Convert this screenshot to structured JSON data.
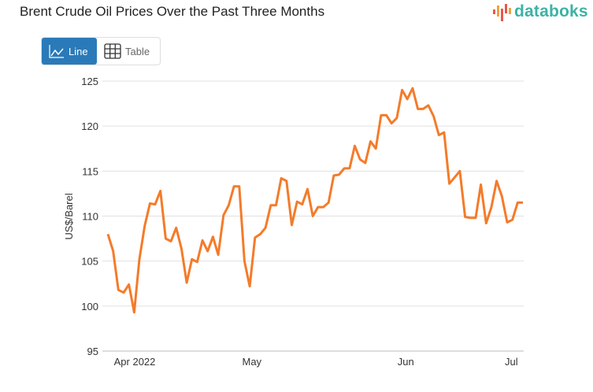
{
  "title": "Brent Crude Oil Prices Over the Past Three Months",
  "logo": {
    "text": "databoks",
    "colors": [
      "#e8574a",
      "#f0a23c",
      "#3bb3a5"
    ]
  },
  "view_toggle": {
    "line_label": "Line",
    "table_label": "Table",
    "active": "Line",
    "active_color": "#2a7ab9"
  },
  "chart_data": {
    "type": "line",
    "title": "Brent Crude Oil Prices Over the Past Three Months",
    "ylabel": "US$/Barel",
    "xlabel": "",
    "ylim": [
      95,
      125
    ],
    "yticks": [
      95,
      100,
      105,
      110,
      115,
      120,
      125
    ],
    "grid": true,
    "line_color": "#f47b2a",
    "xticks": [
      {
        "label": "Apr 2022",
        "at": 5.1
      },
      {
        "label": "May",
        "at": 27.4
      },
      {
        "label": "Jun",
        "at": 56.7
      },
      {
        "label": "Jul",
        "at": 76.8
      }
    ],
    "values": [
      108.0,
      106.1,
      101.8,
      101.5,
      102.4,
      99.3,
      105.2,
      108.9,
      111.4,
      111.3,
      112.8,
      107.5,
      107.2,
      108.7,
      106.4,
      102.6,
      105.2,
      104.9,
      107.3,
      106.1,
      107.7,
      105.7,
      110.1,
      111.2,
      113.3,
      113.3,
      105.0,
      102.2,
      107.6,
      108.0,
      108.7,
      111.2,
      111.2,
      114.2,
      113.9,
      109.0,
      111.6,
      111.3,
      113.0,
      110.0,
      111.0,
      111.0,
      111.5,
      114.5,
      114.6,
      115.3,
      115.3,
      117.8,
      116.3,
      115.9,
      118.3,
      117.5,
      121.2,
      121.2,
      120.3,
      120.9,
      124.0,
      123.0,
      124.2,
      121.9,
      121.9,
      122.3,
      121.1,
      119.0,
      119.3,
      113.6,
      114.3,
      115.0,
      109.9,
      109.8,
      109.8,
      113.5,
      109.2,
      111.0,
      113.9,
      112.2,
      109.3,
      109.6,
      111.5,
      111.5
    ]
  }
}
